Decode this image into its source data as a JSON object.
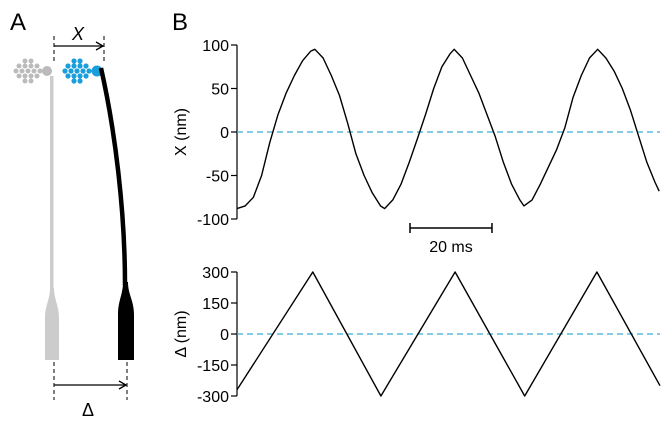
{
  "panel_labels": [
    "A",
    "B"
  ],
  "diagram": {
    "x_label": "X",
    "delta_label": "Δ"
  },
  "chart_data": [
    {
      "type": "line",
      "ylabel": "X (nm)",
      "x": [
        0,
        2,
        4,
        6,
        8,
        10,
        12,
        14,
        16,
        18,
        19,
        21,
        23,
        25,
        27,
        29,
        31,
        33,
        35,
        36,
        38,
        40,
        42,
        44,
        46,
        48,
        50,
        52,
        53,
        55,
        57,
        59,
        61,
        63,
        65,
        67,
        69,
        70,
        72,
        74,
        76,
        78,
        80,
        82,
        84,
        86,
        88,
        90,
        92,
        94,
        96,
        98,
        100,
        102,
        103
      ],
      "series": [
        {
          "color": "#000000",
          "values": [
            -88,
            -85,
            -75,
            -50,
            -12,
            20,
            45,
            65,
            82,
            93,
            95,
            85,
            65,
            42,
            10,
            -25,
            -50,
            -70,
            -85,
            -88,
            -78,
            -60,
            -35,
            -8,
            20,
            50,
            75,
            90,
            95,
            85,
            65,
            45,
            20,
            -5,
            -35,
            -60,
            -78,
            -85,
            -78,
            -60,
            -40,
            -20,
            5,
            40,
            65,
            85,
            95,
            85,
            70,
            50,
            25,
            -5,
            -35,
            -58,
            -68
          ]
        }
      ],
      "xlim": [
        0,
        103.2
      ],
      "ylim": [
        -100,
        100
      ],
      "yticks": [
        100,
        50,
        0,
        -50,
        -100
      ],
      "hline": {
        "value": 0,
        "color": "#3aaed8"
      },
      "scalebar": {
        "value": 20,
        "label": "20 ms"
      }
    },
    {
      "type": "line",
      "ylabel": "Δ (nm)",
      "x": [
        0,
        18.5,
        35.1,
        53.2,
        70.2,
        87.8,
        103.2
      ],
      "series": [
        {
          "color": "#000000",
          "values": [
            -270,
            300,
            -300,
            300,
            -300,
            300,
            -250
          ]
        }
      ],
      "xlim": [
        0,
        103.2
      ],
      "ylim": [
        -300,
        300
      ],
      "yticks": [
        300,
        150,
        0,
        -150,
        -300
      ],
      "hline": {
        "value": 0,
        "color": "#3aaed8"
      }
    }
  ]
}
